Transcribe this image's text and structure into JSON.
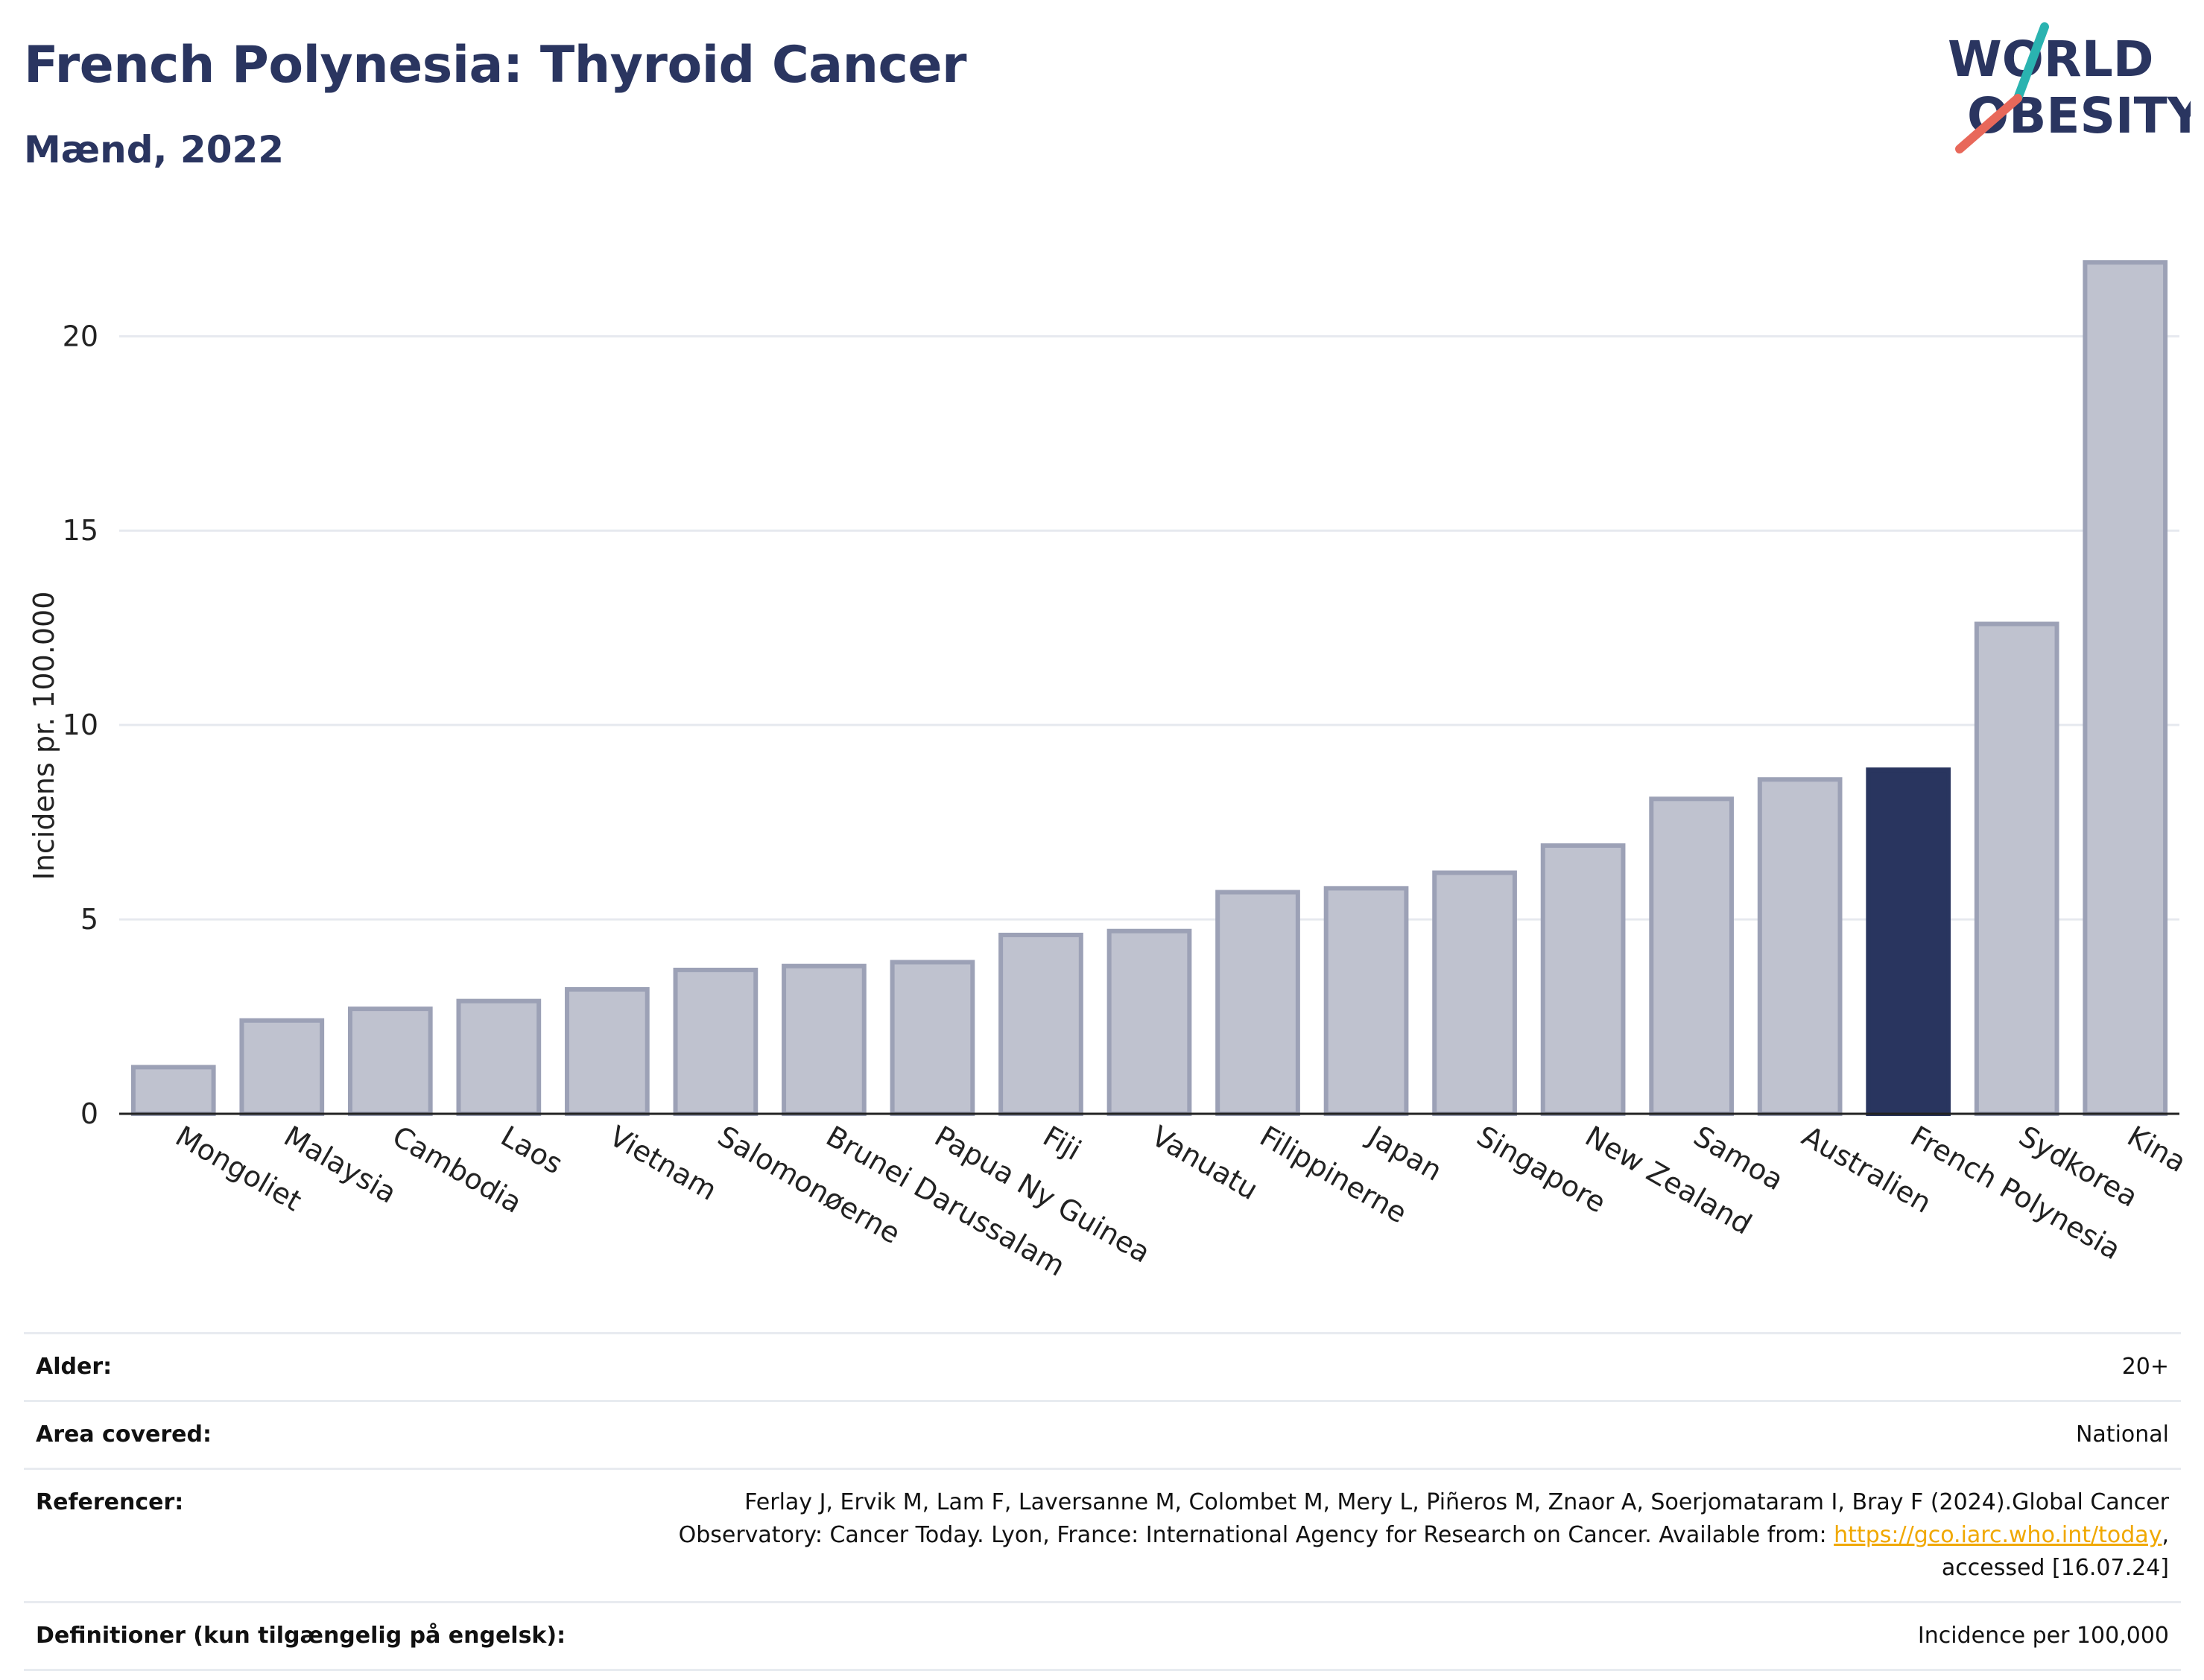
{
  "header": {
    "title": "French Polynesia: Thyroid Cancer",
    "subtitle": "Mænd, 2022"
  },
  "logo": {
    "line1": "WORLD",
    "line2": "OBESITY"
  },
  "colors": {
    "highlight": "#29355f",
    "bar_fill": "#bfc2cf",
    "bar_stroke": "#9ca1b6",
    "grid": "#e6e9ef",
    "logo_teal": "#2ab3b0",
    "logo_coral": "#e8685a"
  },
  "chart_data": {
    "type": "bar",
    "categories": [
      "Mongoliet",
      "Malaysia",
      "Cambodia",
      "Laos",
      "Vietnam",
      "Salomonøerne",
      "Brunei Darussalam",
      "Papua Ny Guinea",
      "Fiji",
      "Vanuatu",
      "Filippinerne",
      "Japan",
      "Singapore",
      "New Zealand",
      "Samoa",
      "Australien",
      "French Polynesia",
      "Sydkorea",
      "Kina"
    ],
    "values": [
      1.2,
      2.4,
      2.7,
      2.9,
      3.2,
      3.7,
      3.8,
      3.9,
      4.6,
      4.7,
      5.7,
      5.8,
      6.2,
      6.9,
      8.1,
      8.6,
      8.85,
      12.6,
      21.9
    ],
    "highlight": "French Polynesia",
    "ylabel": "Incidens pr. 100.000",
    "xlabel": "",
    "ylim": [
      0,
      22.9
    ],
    "yticks": [
      0,
      5,
      10,
      15,
      20
    ],
    "grid": true
  },
  "meta": {
    "age_label": "Alder:",
    "age_value": "20+",
    "area_label": "Area covered:",
    "area_value": "National",
    "refs_label": "Referencer:",
    "refs_text_1": "Ferlay J, Ervik M, Lam F, Laversanne M, Colombet M, Mery L, Piñeros M, Znaor A, Soerjomataram I, Bray F (2024).Global Cancer",
    "refs_text_2": "Observatory: Cancer Today. Lyon, France: International Agency for Research on Cancer. Available from: ",
    "refs_link": "https://gco.iarc.who.int/today",
    "refs_text_3": ",",
    "refs_text_4": "accessed [16.07.24]",
    "defs_label": "Definitioner (kun tilgængelig på engelsk):",
    "defs_value": "Incidence per 100,000"
  }
}
